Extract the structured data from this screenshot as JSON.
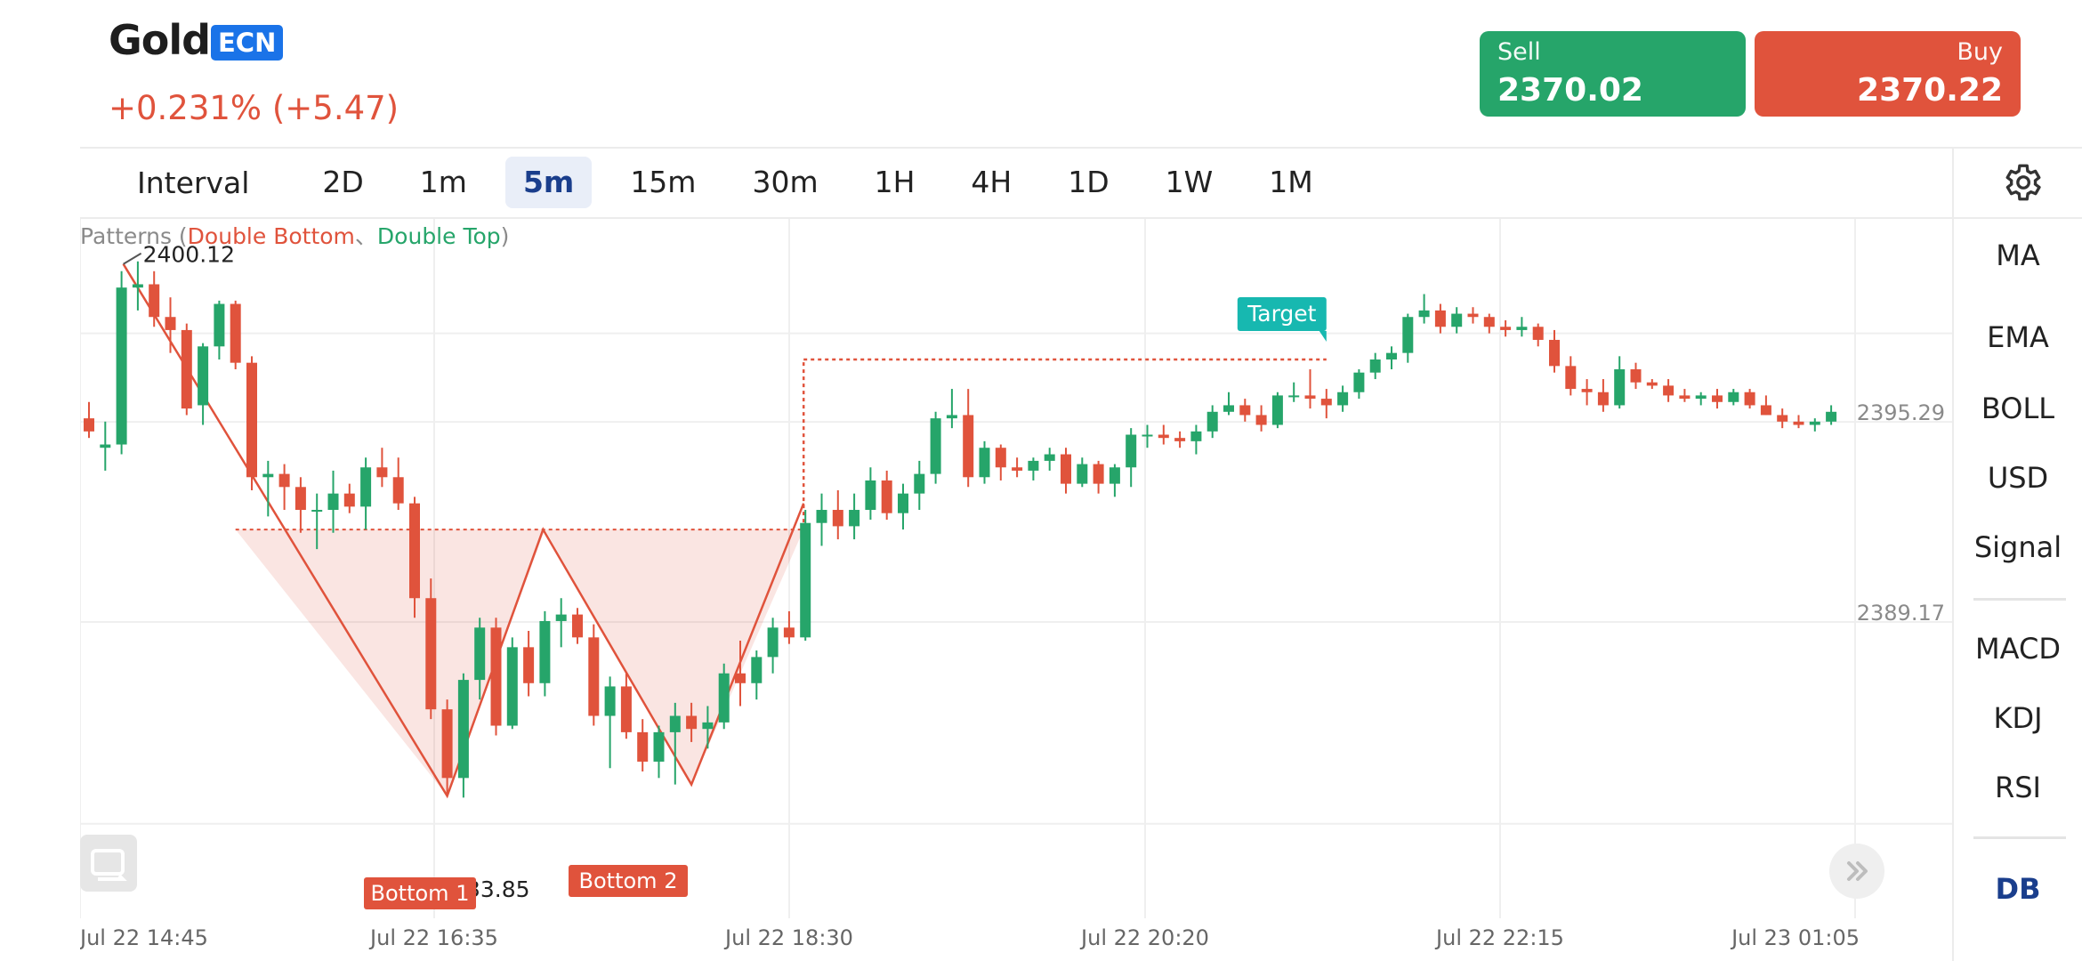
{
  "header": {
    "symbol": "Gold",
    "badge": "ECN",
    "change": "+0.231% (+5.47)"
  },
  "trade": {
    "sell_label": "Sell",
    "sell_price": "2370.02",
    "buy_label": "Buy",
    "buy_price": "2370.22"
  },
  "intervals": {
    "label": "Interval",
    "items": [
      "2D",
      "1m",
      "5m",
      "15m",
      "30m",
      "1H",
      "4H",
      "1D",
      "1W",
      "1M"
    ],
    "active": "5m"
  },
  "indicators": {
    "main": [
      "MA",
      "EMA",
      "BOLL",
      "USD",
      "Signal"
    ],
    "sub": [
      "MACD",
      "KDJ",
      "RSI"
    ],
    "extra": "DB"
  },
  "patterns_legend": {
    "prefix": "Patterns (",
    "double_bottom": "Double Bottom",
    "separator": "、",
    "double_top": "Double Top",
    "suffix": ")"
  },
  "icons": {
    "settings": "gear-icon",
    "reset": "reset-view-icon",
    "scroll": "scroll-latest-icon"
  },
  "colors": {
    "up": "#26a56a",
    "down": "#e0533c",
    "badge": "#1a73e8",
    "target": "#17b8b0",
    "active_interval": "#1a3e8c"
  },
  "chart_data": {
    "type": "candlestick",
    "symbol": "Gold",
    "interval": "5m",
    "x_tick_labels": [
      "Jul 22 14:45",
      "Jul 22 16:35",
      "Jul 22 18:30",
      "Jul 22 20:20",
      "Jul 22 22:15",
      "Jul 23 01:05"
    ],
    "y_tick_labels": [
      "2395.29",
      "2389.17"
    ],
    "ylim": [
      2380.0,
      2401.5
    ],
    "annotations": {
      "high": "2400.12",
      "low_label": "33.85",
      "target": "Target",
      "bottom1": "Bottom 1",
      "bottom2": "Bottom 2"
    },
    "pattern": {
      "name": "Double Bottom",
      "left_peak": 2400.12,
      "bottom1": 2383.85,
      "neckline": 2392.0,
      "bottom2": 2384.2,
      "breakout": 2392.8,
      "target": 2397.2
    },
    "candles": [
      [
        2395.4,
        2395.9,
        2394.8,
        2395.0
      ],
      [
        2394.5,
        2395.3,
        2393.8,
        2394.6
      ],
      [
        2394.6,
        2399.9,
        2394.3,
        2399.4
      ],
      [
        2399.4,
        2400.2,
        2398.7,
        2399.5
      ],
      [
        2399.5,
        2399.9,
        2398.2,
        2398.5
      ],
      [
        2398.5,
        2399.1,
        2397.4,
        2398.1
      ],
      [
        2398.1,
        2398.3,
        2395.5,
        2395.7
      ],
      [
        2395.8,
        2397.7,
        2395.2,
        2397.6
      ],
      [
        2397.6,
        2399.0,
        2397.2,
        2398.9
      ],
      [
        2398.9,
        2399.0,
        2396.9,
        2397.1
      ],
      [
        2397.1,
        2397.3,
        2393.2,
        2393.6
      ],
      [
        2393.6,
        2394.1,
        2392.4,
        2393.7
      ],
      [
        2393.7,
        2394.0,
        2392.6,
        2393.3
      ],
      [
        2393.3,
        2393.6,
        2391.9,
        2392.6
      ],
      [
        2392.6,
        2393.1,
        2391.4,
        2392.6
      ],
      [
        2392.6,
        2393.8,
        2391.9,
        2393.1
      ],
      [
        2393.1,
        2393.4,
        2392.5,
        2392.7
      ],
      [
        2392.7,
        2394.2,
        2392.0,
        2393.9
      ],
      [
        2393.9,
        2394.5,
        2393.3,
        2393.6
      ],
      [
        2393.6,
        2394.2,
        2392.6,
        2392.8
      ],
      [
        2392.8,
        2393.0,
        2389.3,
        2389.9
      ],
      [
        2389.9,
        2390.5,
        2386.2,
        2386.5
      ],
      [
        2386.5,
        2386.8,
        2383.9,
        2384.4
      ],
      [
        2384.4,
        2387.6,
        2383.8,
        2387.4
      ],
      [
        2387.4,
        2389.3,
        2386.8,
        2389.0
      ],
      [
        2389.0,
        2389.3,
        2385.7,
        2386.0
      ],
      [
        2386.0,
        2388.7,
        2385.9,
        2388.4
      ],
      [
        2388.4,
        2388.9,
        2386.9,
        2387.3
      ],
      [
        2387.3,
        2389.5,
        2386.9,
        2389.2
      ],
      [
        2389.2,
        2389.9,
        2388.4,
        2389.4
      ],
      [
        2389.4,
        2389.6,
        2388.5,
        2388.7
      ],
      [
        2388.7,
        2389.1,
        2386.0,
        2386.3
      ],
      [
        2386.3,
        2387.5,
        2384.7,
        2387.2
      ],
      [
        2387.2,
        2387.6,
        2385.6,
        2385.8
      ],
      [
        2385.8,
        2386.2,
        2384.6,
        2384.9
      ],
      [
        2384.9,
        2386.0,
        2384.4,
        2385.8
      ],
      [
        2385.8,
        2386.7,
        2384.2,
        2386.3
      ],
      [
        2386.3,
        2386.7,
        2385.5,
        2385.9
      ],
      [
        2385.9,
        2386.6,
        2385.3,
        2386.1
      ],
      [
        2386.1,
        2387.9,
        2385.9,
        2387.6
      ],
      [
        2387.6,
        2388.6,
        2386.6,
        2387.3
      ],
      [
        2387.3,
        2388.3,
        2386.8,
        2388.1
      ],
      [
        2388.1,
        2389.3,
        2387.6,
        2389.0
      ],
      [
        2389.0,
        2389.5,
        2388.5,
        2388.7
      ],
      [
        2388.7,
        2392.6,
        2388.6,
        2392.2
      ],
      [
        2392.2,
        2393.1,
        2391.5,
        2392.6
      ],
      [
        2392.6,
        2393.2,
        2391.7,
        2392.1
      ],
      [
        2392.1,
        2393.1,
        2391.7,
        2392.6
      ],
      [
        2392.6,
        2393.9,
        2392.3,
        2393.5
      ],
      [
        2393.5,
        2393.8,
        2392.3,
        2392.5
      ],
      [
        2392.5,
        2393.4,
        2392.0,
        2393.1
      ],
      [
        2393.1,
        2394.1,
        2392.6,
        2393.7
      ],
      [
        2393.7,
        2395.6,
        2393.4,
        2395.4
      ],
      [
        2395.4,
        2396.3,
        2395.1,
        2395.5
      ],
      [
        2395.5,
        2396.3,
        2393.3,
        2393.6
      ],
      [
        2393.6,
        2394.7,
        2393.4,
        2394.5
      ],
      [
        2394.5,
        2394.6,
        2393.5,
        2393.9
      ],
      [
        2393.9,
        2394.2,
        2393.6,
        2393.8
      ],
      [
        2393.8,
        2394.2,
        2393.5,
        2394.1
      ],
      [
        2394.1,
        2394.5,
        2393.8,
        2394.3
      ],
      [
        2394.3,
        2394.5,
        2393.1,
        2393.4
      ],
      [
        2393.4,
        2394.2,
        2393.3,
        2394.0
      ],
      [
        2394.0,
        2394.1,
        2393.1,
        2393.4
      ],
      [
        2393.4,
        2394.0,
        2393.0,
        2393.9
      ],
      [
        2393.9,
        2395.1,
        2393.3,
        2394.9
      ],
      [
        2394.9,
        2395.2,
        2394.5,
        2394.9
      ],
      [
        2394.9,
        2395.2,
        2394.6,
        2394.8
      ],
      [
        2394.8,
        2395.0,
        2394.5,
        2394.7
      ],
      [
        2394.7,
        2395.2,
        2394.3,
        2395.0
      ],
      [
        2395.0,
        2395.8,
        2394.8,
        2395.6
      ],
      [
        2395.6,
        2396.2,
        2395.5,
        2395.8
      ],
      [
        2395.8,
        2396.0,
        2395.3,
        2395.5
      ],
      [
        2395.5,
        2395.8,
        2395.0,
        2395.2
      ],
      [
        2395.2,
        2396.2,
        2395.1,
        2396.1
      ],
      [
        2396.1,
        2396.5,
        2395.9,
        2396.1
      ],
      [
        2396.1,
        2396.9,
        2395.7,
        2396.0
      ],
      [
        2396.0,
        2396.3,
        2395.4,
        2395.8
      ],
      [
        2395.8,
        2396.4,
        2395.6,
        2396.2
      ],
      [
        2396.2,
        2396.9,
        2396.0,
        2396.8
      ],
      [
        2396.8,
        2397.4,
        2396.6,
        2397.2
      ],
      [
        2397.2,
        2397.6,
        2396.9,
        2397.4
      ],
      [
        2397.4,
        2398.6,
        2397.1,
        2398.5
      ],
      [
        2398.5,
        2399.2,
        2398.3,
        2398.7
      ],
      [
        2398.7,
        2398.9,
        2398.0,
        2398.2
      ],
      [
        2398.2,
        2398.8,
        2398.0,
        2398.6
      ],
      [
        2398.6,
        2398.8,
        2398.3,
        2398.5
      ],
      [
        2398.5,
        2398.6,
        2398.0,
        2398.2
      ],
      [
        2398.2,
        2398.4,
        2397.9,
        2398.1
      ],
      [
        2398.1,
        2398.5,
        2397.9,
        2398.2
      ],
      [
        2398.2,
        2398.3,
        2397.6,
        2397.8
      ],
      [
        2397.8,
        2398.1,
        2396.8,
        2397.0
      ],
      [
        2397.0,
        2397.3,
        2396.1,
        2396.3
      ],
      [
        2396.3,
        2396.6,
        2395.8,
        2396.2
      ],
      [
        2396.2,
        2396.6,
        2395.6,
        2395.8
      ],
      [
        2395.8,
        2397.3,
        2395.7,
        2396.9
      ],
      [
        2396.9,
        2397.1,
        2396.3,
        2396.5
      ],
      [
        2396.5,
        2396.6,
        2396.3,
        2396.4
      ],
      [
        2396.4,
        2396.6,
        2395.9,
        2396.1
      ],
      [
        2396.1,
        2396.3,
        2395.9,
        2396.0
      ],
      [
        2396.0,
        2396.2,
        2395.8,
        2396.1
      ],
      [
        2396.1,
        2396.3,
        2395.7,
        2395.9
      ],
      [
        2395.9,
        2396.3,
        2395.8,
        2396.2
      ],
      [
        2396.2,
        2396.3,
        2395.7,
        2395.8
      ],
      [
        2395.8,
        2396.1,
        2395.5,
        2395.5
      ],
      [
        2395.5,
        2395.7,
        2395.1,
        2395.3
      ],
      [
        2395.3,
        2395.5,
        2395.1,
        2395.2
      ],
      [
        2395.2,
        2395.4,
        2395.0,
        2395.3
      ],
      [
        2395.3,
        2395.8,
        2395.2,
        2395.6
      ]
    ]
  }
}
